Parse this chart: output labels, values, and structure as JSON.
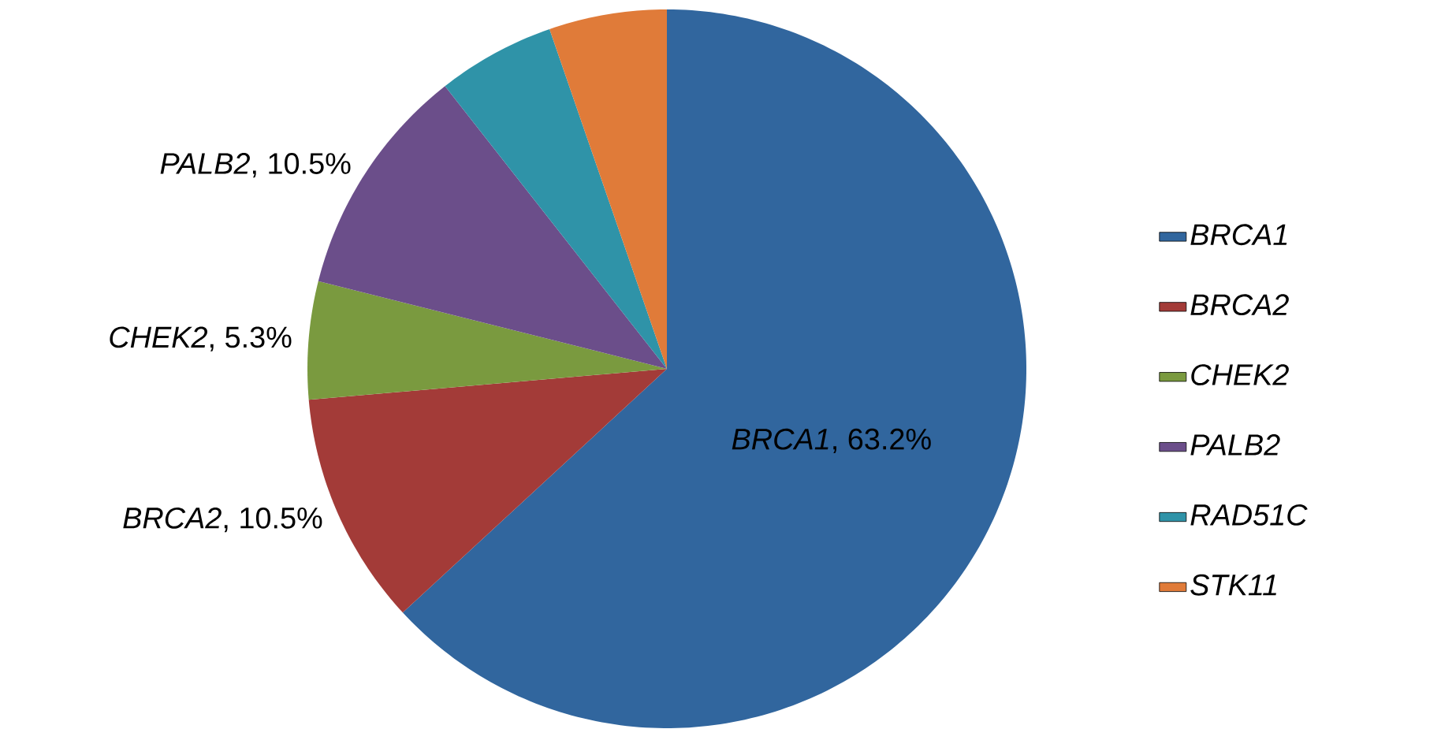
{
  "chart_data": {
    "type": "pie",
    "categories": [
      "BRCA1",
      "BRCA2",
      "CHEK2",
      "PALB2",
      "RAD51C",
      "STK11"
    ],
    "values": [
      63.2,
      10.5,
      5.3,
      10.5,
      5.3,
      5.3
    ],
    "colors": [
      "#31669e",
      "#a33b38",
      "#7a9a3f",
      "#6b4e8a",
      "#2f93a8",
      "#e07b39"
    ],
    "value_labels": [
      "*BRCA1*, 63.2%",
      "*BRCA2*, 10.5%",
      "*CHEK2*, 5.3%",
      "*PALB2*, 10.5%",
      null,
      null
    ],
    "legend": "right"
  }
}
